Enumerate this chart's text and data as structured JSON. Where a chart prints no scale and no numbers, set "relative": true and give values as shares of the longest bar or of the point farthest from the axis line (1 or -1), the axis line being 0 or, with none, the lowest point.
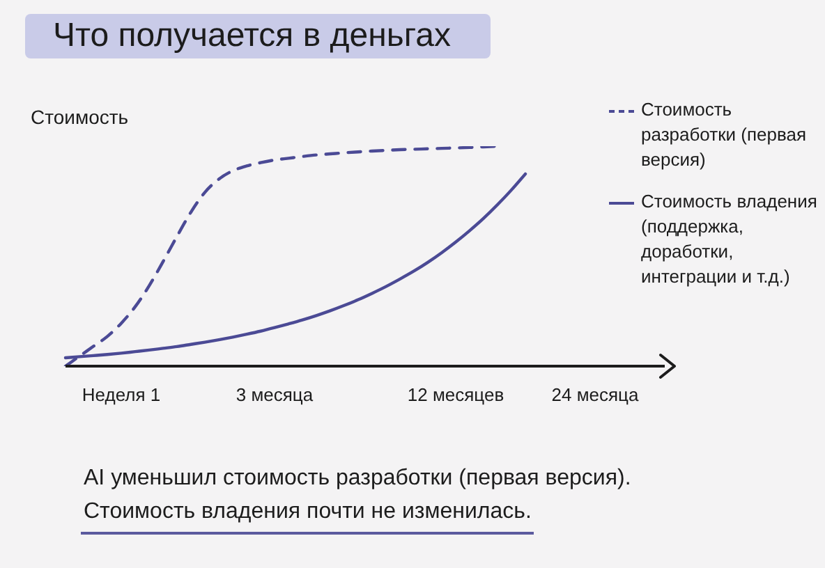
{
  "chart_data": {
    "type": "line",
    "title": "Что получается в деньгах",
    "ylabel": "Стоимость",
    "relative": true,
    "categories": [
      null,
      null,
      null,
      null,
      "Неделя 1",
      null,
      null,
      null,
      null,
      null,
      null,
      null,
      null,
      null,
      null,
      "3 месяца",
      null,
      null,
      null,
      null,
      null,
      null,
      null,
      null,
      null,
      null,
      null,
      null,
      "12 месяцев",
      null,
      null,
      null,
      null,
      null,
      null,
      null,
      null,
      null,
      "24 месяца",
      null,
      null,
      null,
      null,
      null
    ],
    "series": [
      {
        "name": "Стоимость разработки (первая версия)",
        "color": "#4b4a95",
        "line_style": "dashed",
        "values": [
          0,
          0.045,
          0.09,
          0.135,
          0.195,
          0.27,
          0.365,
          0.475,
          0.59,
          0.7,
          0.79,
          0.85,
          0.888,
          0.91,
          0.925,
          0.937,
          0.945,
          0.953,
          0.96,
          0.965,
          0.97,
          0.974,
          0.978,
          0.981,
          0.984,
          0.986,
          0.988,
          0.99,
          0.992,
          0.994,
          0.997,
          1,
          null,
          null,
          null,
          null,
          null,
          null,
          null,
          null,
          null,
          null,
          null,
          null
        ]
      },
      {
        "name": "Стоимость владения (поддержка, доработки, интеграции и т.д.)",
        "color": "#4b4a95",
        "line_style": "solid",
        "values": [
          0.038,
          0.043,
          0.048,
          0.053,
          0.059,
          0.066,
          0.073,
          0.081,
          0.089,
          0.099,
          0.109,
          0.12,
          0.132,
          0.145,
          0.159,
          0.175,
          0.192,
          0.21,
          0.23,
          0.252,
          0.276,
          0.302,
          0.331,
          0.362,
          0.396,
          0.432,
          0.472,
          0.516,
          0.564,
          0.616,
          0.672,
          0.734,
          0.801,
          0.874,
          null,
          null,
          null,
          null,
          null,
          null,
          null,
          null,
          null,
          null
        ]
      }
    ],
    "legend": "top right",
    "annotations": [
      "AI уменьшил стоимость разработки (первая версия).",
      "Стоимость владения почти не изменилась."
    ]
  }
}
